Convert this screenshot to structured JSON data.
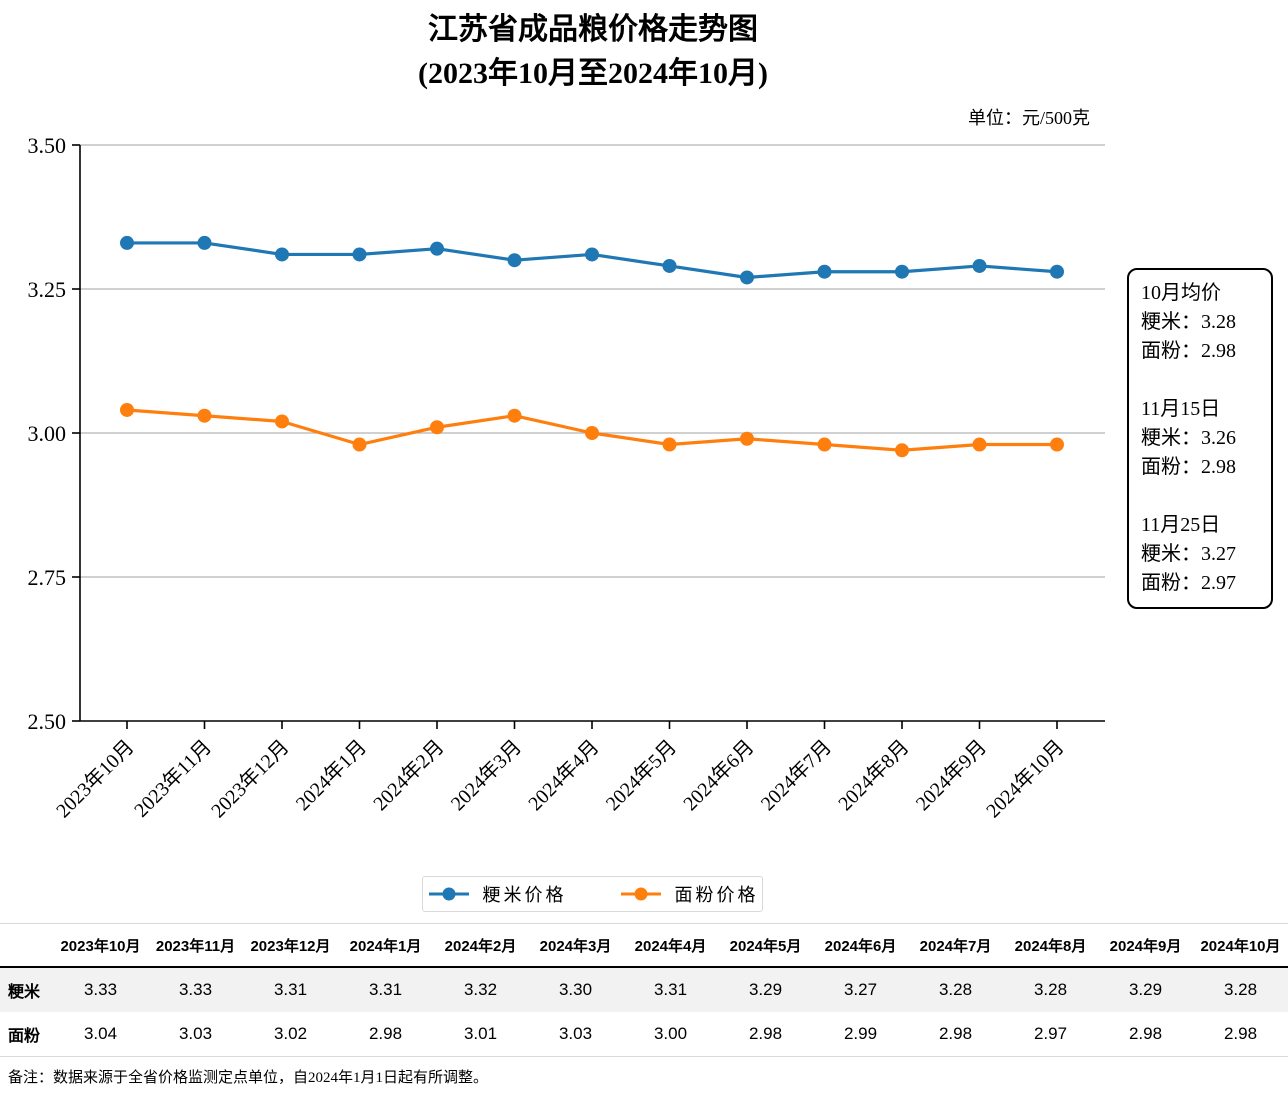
{
  "title": {
    "line1": "江苏省成品粮价格走势图",
    "line2": "(2023年10月至2024年10月)"
  },
  "unit_label": "单位：元/500克",
  "chart_data": {
    "type": "line",
    "categories": [
      "2023年10月",
      "2023年11月",
      "2023年12月",
      "2024年1月",
      "2024年2月",
      "2024年3月",
      "2024年4月",
      "2024年5月",
      "2024年6月",
      "2024年7月",
      "2024年8月",
      "2024年9月",
      "2024年10月"
    ],
    "series": [
      {
        "name": "粳米价格",
        "color": "#1f77b4",
        "values": [
          3.33,
          3.33,
          3.31,
          3.31,
          3.32,
          3.3,
          3.31,
          3.29,
          3.27,
          3.28,
          3.28,
          3.29,
          3.28
        ]
      },
      {
        "name": "面粉价格",
        "color": "#ff7f0e",
        "values": [
          3.04,
          3.03,
          3.02,
          2.98,
          3.01,
          3.03,
          3.0,
          2.98,
          2.99,
          2.98,
          2.97,
          2.98,
          2.98
        ]
      }
    ],
    "ylim": [
      2.5,
      3.5
    ],
    "yticks": [
      3.5,
      3.25,
      3.0,
      2.75,
      2.5
    ],
    "grid": true,
    "grid_color": "#b3b3b3",
    "legend_position": "bottom",
    "xlabel": "",
    "ylabel": ""
  },
  "annotation": {
    "lines": [
      "10月均价",
      "粳米：3.28",
      "面粉：2.98",
      "",
      "11月15日",
      "粳米：3.26",
      "面粉：2.98",
      "",
      "11月25日",
      "粳米：3.27",
      "面粉：2.97"
    ]
  },
  "table": {
    "columns": [
      "2023年10月",
      "2023年11月",
      "2023年12月",
      "2024年1月",
      "2024年2月",
      "2024年3月",
      "2024年4月",
      "2024年5月",
      "2024年6月",
      "2024年7月",
      "2024年8月",
      "2024年9月",
      "2024年10月"
    ],
    "rows": [
      {
        "label": "粳米",
        "values": [
          "3.33",
          "3.33",
          "3.31",
          "3.31",
          "3.32",
          "3.30",
          "3.31",
          "3.29",
          "3.27",
          "3.28",
          "3.28",
          "3.29",
          "3.28"
        ]
      },
      {
        "label": "面粉",
        "values": [
          "3.04",
          "3.03",
          "3.02",
          "2.98",
          "3.01",
          "3.03",
          "3.00",
          "2.98",
          "2.99",
          "2.98",
          "2.97",
          "2.98",
          "2.98"
        ]
      }
    ]
  },
  "note": "备注：数据来源于全省价格监测定点单位，自2024年1月1日起有所调整。"
}
